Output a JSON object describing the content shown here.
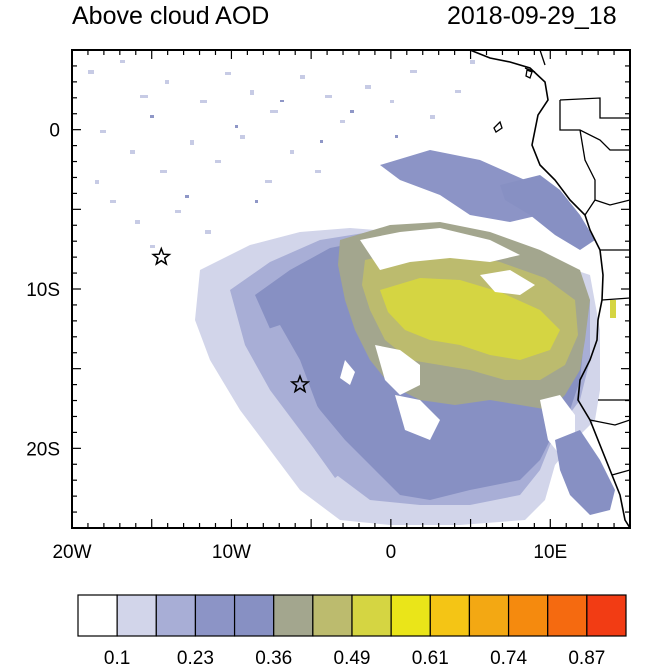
{
  "title_left": "Above cloud AOD",
  "title_right": "2018-09-29_18",
  "map": {
    "lon_range": [
      -20,
      15
    ],
    "lat_range": [
      -25,
      5
    ],
    "lon_ticks": [
      {
        "value": -20,
        "label": "20W"
      },
      {
        "value": -10,
        "label": "10W"
      },
      {
        "value": 0,
        "label": "0"
      },
      {
        "value": 10,
        "label": "10E"
      }
    ],
    "lat_ticks": [
      {
        "value": 0,
        "label": "0"
      },
      {
        "value": -10,
        "label": "10S"
      },
      {
        "value": -20,
        "label": "20S"
      }
    ],
    "stars": [
      {
        "name": "star-marker-north",
        "lon": -14.4,
        "lat": -8.0
      },
      {
        "name": "star-marker-south",
        "lon": -5.7,
        "lat": -16.0
      }
    ]
  },
  "colorbar": {
    "colors": [
      "#ffffff",
      "#d2d5ea",
      "#a8aed6",
      "#8c94c6",
      "#8790c3",
      "#a3a68e",
      "#bcbb6e",
      "#d5d542",
      "#eae519",
      "#f4c515",
      "#f3a813",
      "#f58a0e",
      "#f56a10",
      "#f23c14"
    ],
    "labels": [
      "0.1",
      "0.23",
      "0.36",
      "0.49",
      "0.61",
      "0.74",
      "0.87"
    ]
  },
  "legend": {
    "aod_colors": {
      "very_light": "#d2d5ea",
      "light": "#a8aed6",
      "medium": "#8790c3",
      "olive": "#a3a68e",
      "olive_yellow": "#bcbb6e",
      "yellow": "#d5d542"
    }
  }
}
